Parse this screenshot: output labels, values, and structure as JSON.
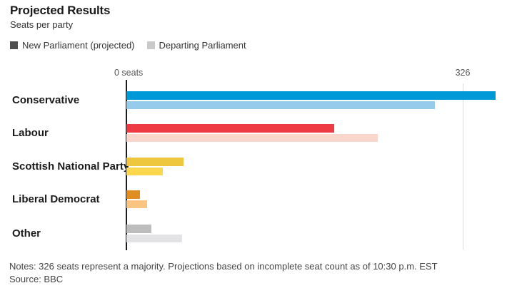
{
  "header": {
    "title": "Projected Results",
    "subtitle": "Seats per party"
  },
  "legend": [
    {
      "label": "New Parliament (projected)",
      "color": "#4d4d4d"
    },
    {
      "label": "Departing Parliament",
      "color": "#c9c9c9"
    }
  ],
  "axis": {
    "zero_label": "0 seats",
    "majority_label": "326"
  },
  "footer": {
    "notes": "Notes: 326 seats represent a majority. Projections based on incomplete seat count as of 10:30 p.m. EST",
    "source": "Source: BBC"
  },
  "chart_data": {
    "type": "bar",
    "orientation": "horizontal",
    "title": "Projected Results",
    "subtitle": "Seats per party",
    "xlabel": "Seats",
    "xlim": [
      0,
      378
    ],
    "majority_line": 326,
    "grid": "single vertical line at 326",
    "legend_position": "top",
    "categories": [
      "Conservative",
      "Labour",
      "Scottish National Party",
      "Liberal Democrat",
      "Other"
    ],
    "series": [
      {
        "name": "New Parliament (projected)",
        "values": [
          357,
          201,
          55,
          13,
          24
        ]
      },
      {
        "name": "Departing Parliament",
        "values": [
          298,
          243,
          35,
          20,
          54
        ]
      }
    ],
    "bar_colors": {
      "new": [
        "#0099d8",
        "#ee3a43",
        "#eec73e",
        "#e08e22",
        "#bdbdbd"
      ],
      "departing": [
        "#97cbec",
        "#fad6cc",
        "#fed84c",
        "#fac583",
        "#e3e3e5"
      ]
    }
  }
}
